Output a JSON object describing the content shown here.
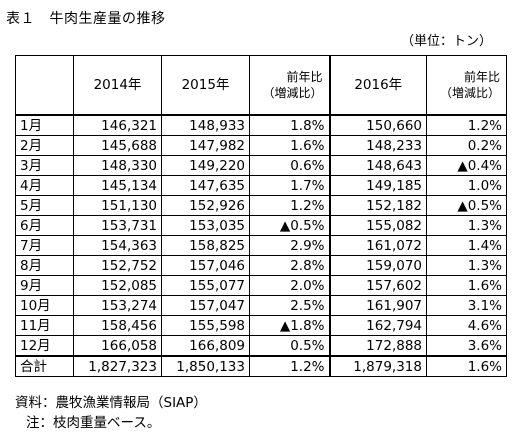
{
  "title": "表１　牛肉生産量の推移",
  "unit": "（単位：トン）",
  "headers": {
    "y2014": "2014年",
    "y2015": "2015年",
    "ratio_line1": "前年比",
    "ratio_line2": "（増減比）",
    "y2016": "2016年"
  },
  "rows": [
    {
      "label": "1月",
      "v2014": "146,321",
      "v2015": "148,933",
      "r2015": "1.8%",
      "v2016": "150,660",
      "r2016": "1.2%"
    },
    {
      "label": "2月",
      "v2014": "145,688",
      "v2015": "147,982",
      "r2015": "1.6%",
      "v2016": "148,233",
      "r2016": "0.2%"
    },
    {
      "label": "3月",
      "v2014": "148,330",
      "v2015": "149,220",
      "r2015": "0.6%",
      "v2016": "148,643",
      "r2016": "▲0.4%"
    },
    {
      "label": "4月",
      "v2014": "145,134",
      "v2015": "147,635",
      "r2015": "1.7%",
      "v2016": "149,185",
      "r2016": "1.0%"
    },
    {
      "label": "5月",
      "v2014": "151,130",
      "v2015": "152,926",
      "r2015": "1.2%",
      "v2016": "152,182",
      "r2016": "▲0.5%"
    },
    {
      "label": "6月",
      "v2014": "153,731",
      "v2015": "153,035",
      "r2015": "▲0.5%",
      "v2016": "155,082",
      "r2016": "1.3%"
    },
    {
      "label": "7月",
      "v2014": "154,363",
      "v2015": "158,825",
      "r2015": "2.9%",
      "v2016": "161,072",
      "r2016": "1.4%"
    },
    {
      "label": "8月",
      "v2014": "152,752",
      "v2015": "157,046",
      "r2015": "2.8%",
      "v2016": "159,070",
      "r2016": "1.3%"
    },
    {
      "label": "9月",
      "v2014": "152,085",
      "v2015": "155,077",
      "r2015": "2.0%",
      "v2016": "157,602",
      "r2016": "1.6%"
    },
    {
      "label": "10月",
      "v2014": "153,274",
      "v2015": "157,047",
      "r2015": "2.5%",
      "v2016": "161,907",
      "r2016": "3.1%"
    },
    {
      "label": "11月",
      "v2014": "158,456",
      "v2015": "155,598",
      "r2015": "▲1.8%",
      "v2016": "162,794",
      "r2016": "4.6%"
    },
    {
      "label": "12月",
      "v2014": "166,058",
      "v2015": "166,809",
      "r2015": "0.5%",
      "v2016": "172,888",
      "r2016": "3.6%"
    }
  ],
  "total": {
    "label": "合計",
    "v2014": "1,827,323",
    "v2015": "1,850,133",
    "r2015": "1.2%",
    "v2016": "1,879,318",
    "r2016": "1.6%"
  },
  "source": "資料：農牧漁業情報局（SIAP）",
  "note": "注：枝肉重量ベース。"
}
